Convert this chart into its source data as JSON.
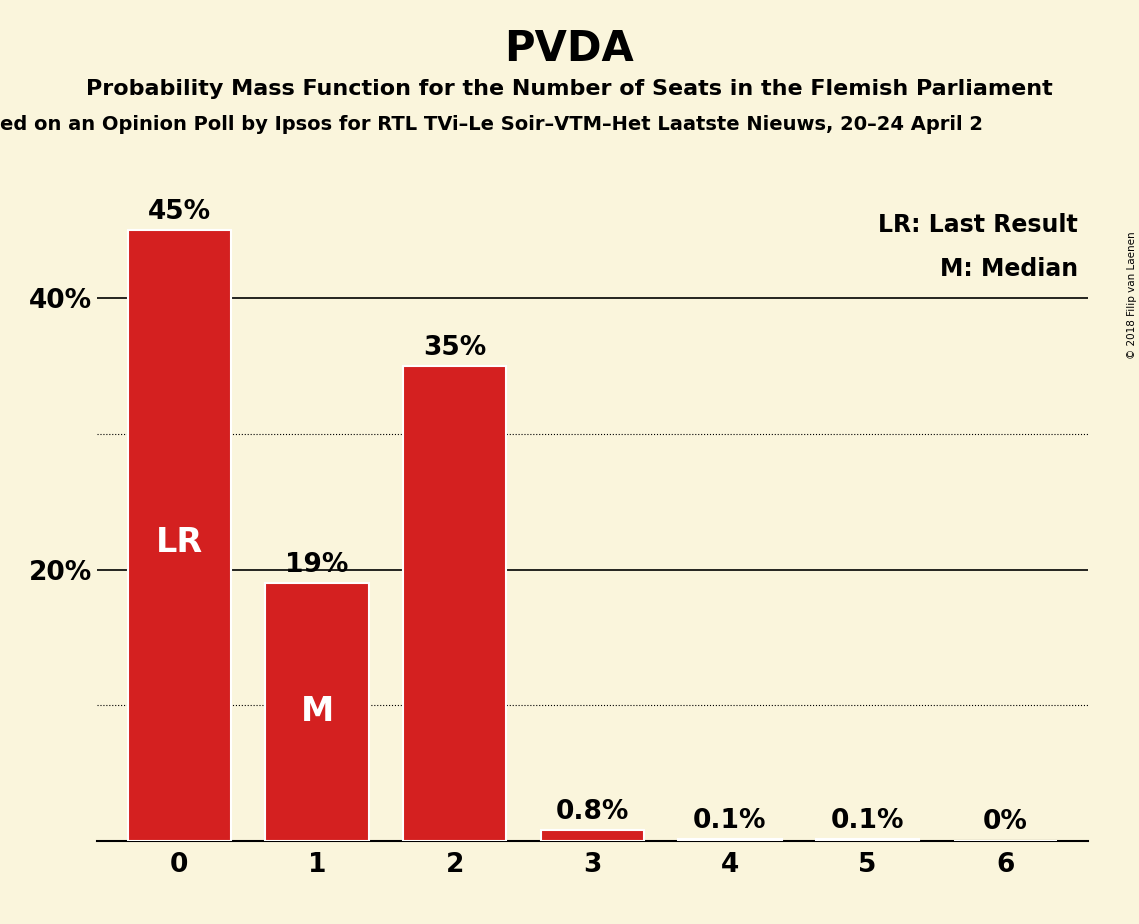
{
  "title": "PVDA",
  "subtitle1": "Probability Mass Function for the Number of Seats in the Flemish Parliament",
  "subtitle2": "ed on an Opinion Poll by Ipsos for RTL TVi–Le Soir–VTM–Het Laatste Nieuws, 20–24 April 2",
  "categories": [
    0,
    1,
    2,
    3,
    4,
    5,
    6
  ],
  "values": [
    45.0,
    19.0,
    35.0,
    0.8,
    0.1,
    0.1,
    0.0
  ],
  "labels": [
    "45%",
    "19%",
    "35%",
    "0.8%",
    "0.1%",
    "0.1%",
    "0%"
  ],
  "bar_color": "#d42020",
  "background_color": "#faf5dc",
  "ylim": [
    0,
    47
  ],
  "ytick_positions": [
    20,
    40
  ],
  "ytick_labels": [
    "20%",
    "40%"
  ],
  "grid_solid_levels": [
    20,
    40
  ],
  "grid_dotted_levels": [
    10,
    30
  ],
  "lr_bar": 0,
  "median_bar": 1,
  "lr_label": "LR: Last Result",
  "median_label": "M: Median",
  "copyright": "© 2018 Filip van Laenen",
  "title_fontsize": 30,
  "subtitle1_fontsize": 16,
  "subtitle2_fontsize": 14,
  "bar_label_fontsize": 19,
  "axis_tick_fontsize": 19,
  "annotation_fontsize": 24,
  "legend_fontsize": 17,
  "bar_width": 0.75
}
